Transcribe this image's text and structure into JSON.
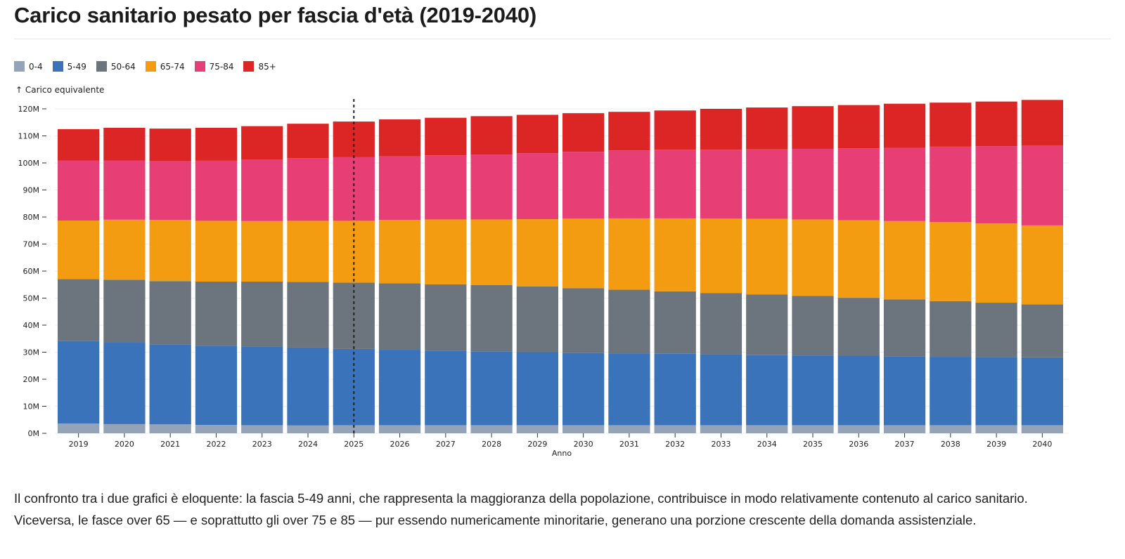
{
  "title": "Carico sanitario pesato per fascia d'età (2019-2040)",
  "paragraph": [
    "Il confronto tra i due grafici è eloquente: la fascia 5-49 anni, che rappresenta la maggioranza della popolazione, contribuisce in modo relativamente contenuto al carico sanitario.",
    "Viceversa, le fasce over 65 — e soprattutto gli over 75 e 85 — pur essendo numericamente minoritarie, generano una porzione crescente della domanda assistenziale."
  ],
  "chart_data": {
    "type": "bar",
    "stacked": true,
    "xlabel": "Anno",
    "ylabel": "↑ Carico equivalente",
    "ylim": [
      0,
      120000000
    ],
    "yticks": [
      0,
      10,
      20,
      30,
      40,
      50,
      60,
      70,
      80,
      90,
      100,
      110,
      120
    ],
    "ytick_labels": [
      "0M",
      "10M",
      "20M",
      "30M",
      "40M",
      "50M",
      "60M",
      "70M",
      "80M",
      "90M",
      "100M",
      "110M",
      "120M"
    ],
    "grid": "horizontal",
    "legend_position": "top-left",
    "annotation": {
      "type": "dashed-vertical-line",
      "at": "2025"
    },
    "categories": [
      "2019",
      "2020",
      "2021",
      "2022",
      "2023",
      "2024",
      "2025",
      "2026",
      "2027",
      "2028",
      "2029",
      "2030",
      "2031",
      "2032",
      "2033",
      "2034",
      "2035",
      "2036",
      "2037",
      "2038",
      "2039",
      "2040"
    ],
    "units": "millions",
    "series": [
      {
        "name": "0-4",
        "color": "#94a3b8",
        "values": [
          3.6,
          3.4,
          3.3,
          3.1,
          3.0,
          2.9,
          3.0,
          3.0,
          3.0,
          3.0,
          3.0,
          3.0,
          3.0,
          3.0,
          3.0,
          3.0,
          3.0,
          3.0,
          3.0,
          3.0,
          3.0,
          3.0
        ]
      },
      {
        "name": "5-49",
        "color": "#3a73b9",
        "values": [
          30.5,
          30.1,
          29.6,
          29.3,
          29.1,
          28.8,
          28.2,
          27.9,
          27.6,
          27.3,
          27.0,
          26.7,
          26.5,
          26.4,
          26.2,
          25.9,
          25.8,
          25.7,
          25.5,
          25.3,
          25.2,
          25.1
        ]
      },
      {
        "name": "50-64",
        "color": "#6c757d",
        "values": [
          22.9,
          23.3,
          23.4,
          23.7,
          24.0,
          24.3,
          24.5,
          24.6,
          24.5,
          24.5,
          24.3,
          24.0,
          23.6,
          23.1,
          22.7,
          22.4,
          22.0,
          21.4,
          21.0,
          20.6,
          20.1,
          19.6
        ]
      },
      {
        "name": "65-74",
        "color": "#f39c12",
        "values": [
          21.7,
          22.2,
          22.6,
          22.5,
          22.4,
          22.6,
          22.9,
          23.4,
          24.0,
          24.3,
          24.9,
          25.7,
          26.4,
          27.0,
          27.5,
          28.0,
          28.3,
          28.7,
          29.0,
          29.2,
          29.3,
          29.2
        ]
      },
      {
        "name": "75-84",
        "color": "#e83e76",
        "values": [
          22.2,
          21.9,
          21.7,
          22.2,
          22.7,
          23.2,
          23.5,
          23.5,
          23.7,
          24.0,
          24.4,
          24.7,
          25.1,
          25.4,
          25.5,
          25.7,
          26.1,
          26.6,
          27.1,
          27.9,
          28.6,
          29.6
        ]
      },
      {
        "name": "85+",
        "color": "#dc2626",
        "values": [
          11.6,
          12.1,
          12.1,
          12.2,
          12.4,
          12.7,
          13.2,
          13.7,
          13.9,
          14.2,
          14.2,
          14.3,
          14.3,
          14.5,
          15.1,
          15.5,
          15.8,
          16.0,
          16.3,
          16.3,
          16.5,
          16.8
        ]
      }
    ]
  }
}
